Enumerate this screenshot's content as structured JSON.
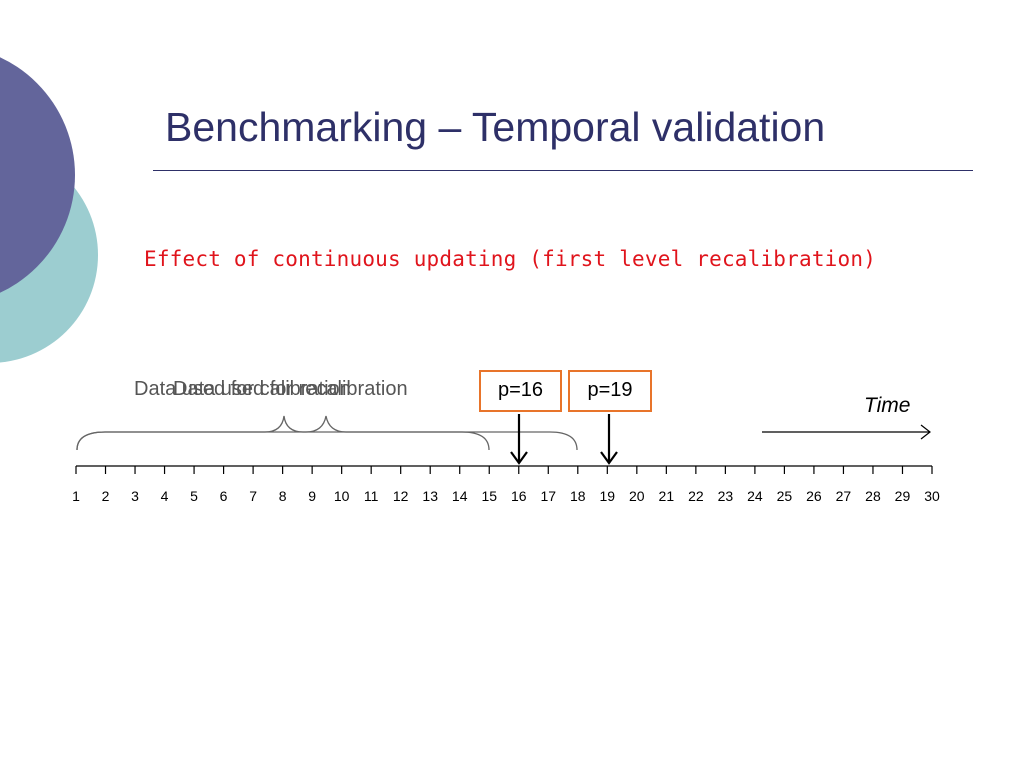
{
  "slide": {
    "title": "Benchmarking – Temporal validation",
    "subtitle": "Effect of continuous updating (first level recalibration)"
  },
  "timeline": {
    "time_label": "Time",
    "range_labels": [
      "Data used for calibration",
      "Data used for recalibration"
    ],
    "predictions": [
      {
        "label": "p=16",
        "point": 16
      },
      {
        "label": "p=19",
        "point": 19
      }
    ],
    "ticks": [
      "1",
      "2",
      "3",
      "4",
      "5",
      "6",
      "7",
      "8",
      "9",
      "10",
      "11",
      "12",
      "13",
      "14",
      "15",
      "16",
      "17",
      "18",
      "19",
      "20",
      "21",
      "22",
      "23",
      "24",
      "25",
      "26",
      "27",
      "28",
      "29",
      "30"
    ]
  },
  "colors": {
    "title": "#2e3068",
    "subtitle": "#e0141c",
    "box_border": "#e8742a",
    "circle_purple": "#63659b",
    "circle_teal": "#9ccdd0"
  }
}
